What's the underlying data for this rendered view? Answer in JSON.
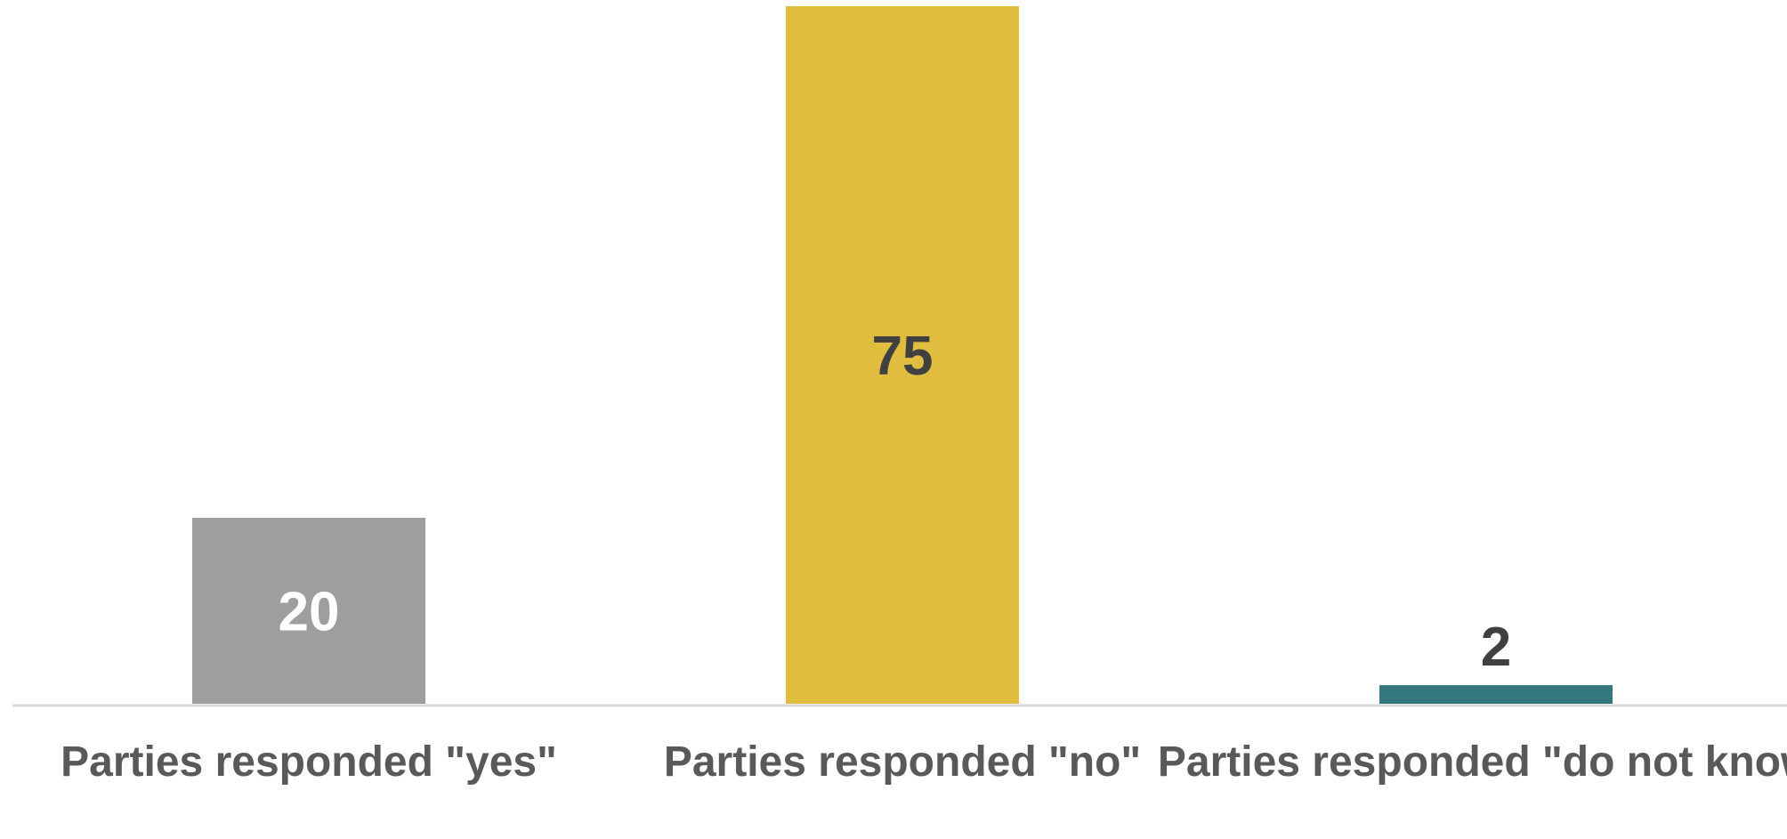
{
  "chart_data": {
    "type": "bar",
    "title": "",
    "xlabel": "",
    "ylabel": "",
    "categories": [
      "Parties responded \"yes\"",
      "Parties responded \"no\"",
      "Parties responded \"do not know\""
    ],
    "values": [
      20,
      75,
      2
    ],
    "ylim": [
      0,
      75
    ],
    "grid": false,
    "legend": "none",
    "bar_colors": [
      "#9e9e9e",
      "#e0bd3f",
      "#33787c"
    ],
    "label_colors": [
      "#ffffff",
      "#404040",
      "#404040"
    ],
    "axis_color": "#d9d9d9"
  }
}
